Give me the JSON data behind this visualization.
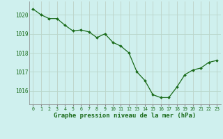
{
  "x": [
    0,
    1,
    2,
    3,
    4,
    5,
    6,
    7,
    8,
    9,
    10,
    11,
    12,
    13,
    14,
    15,
    16,
    17,
    18,
    19,
    20,
    21,
    22,
    23
  ],
  "y": [
    1020.3,
    1020.0,
    1019.8,
    1019.8,
    1019.45,
    1019.15,
    1019.2,
    1019.1,
    1018.8,
    1019.0,
    1018.55,
    1018.35,
    1018.0,
    1017.0,
    1016.55,
    1015.8,
    1015.65,
    1015.65,
    1016.2,
    1016.85,
    1017.1,
    1017.2,
    1017.5,
    1017.6
  ],
  "line_color": "#1a6b1a",
  "marker_color": "#1a6b1a",
  "bg_color": "#cff0ee",
  "grid_color_major": "#b5d9cc",
  "grid_color_minor": "#d0ebe4",
  "text_color": "#1a6b1a",
  "xlabel": "Graphe pression niveau de la mer (hPa)",
  "ylim_min": 1015.3,
  "ylim_max": 1020.7,
  "xlim_min": -0.5,
  "xlim_max": 23.5,
  "yticks": [
    1016,
    1017,
    1018,
    1019,
    1020
  ],
  "xticks": [
    0,
    1,
    2,
    3,
    4,
    5,
    6,
    7,
    8,
    9,
    10,
    11,
    12,
    13,
    14,
    15,
    16,
    17,
    18,
    19,
    20,
    21,
    22,
    23
  ],
  "xlabel_fontsize": 6.5,
  "ytick_fontsize": 5.5,
  "xtick_fontsize": 4.8
}
